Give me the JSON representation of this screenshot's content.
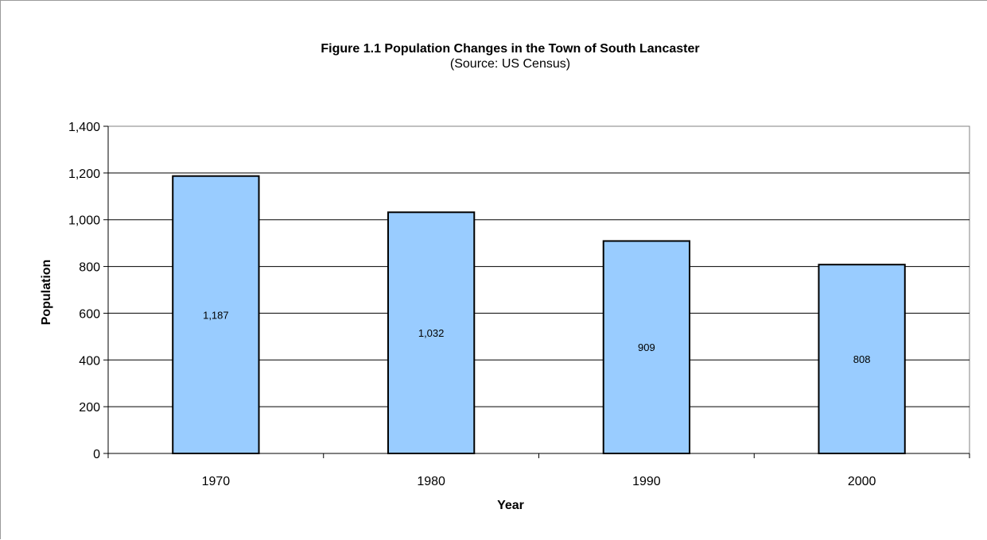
{
  "chart_data": {
    "type": "bar",
    "title": "Figure 1.1 Population Changes in the Town of South Lancaster",
    "subtitle": "(Source: US Census)",
    "xlabel": "Year",
    "ylabel": "Population",
    "categories": [
      "1970",
      "1980",
      "1990",
      "2000"
    ],
    "values": [
      1187,
      1032,
      909,
      808
    ],
    "value_labels": [
      "1,187",
      "1,032",
      "909",
      "808"
    ],
    "ylim": [
      0,
      1400
    ],
    "yticks": [
      0,
      200,
      400,
      600,
      800,
      1000,
      1200,
      1400
    ],
    "ytick_labels": [
      "0",
      "200",
      "400",
      "600",
      "800",
      "1,000",
      "1,200",
      "1,400"
    ],
    "grid": "horizontal",
    "legend": "none",
    "bar_color": "#99ccff"
  }
}
